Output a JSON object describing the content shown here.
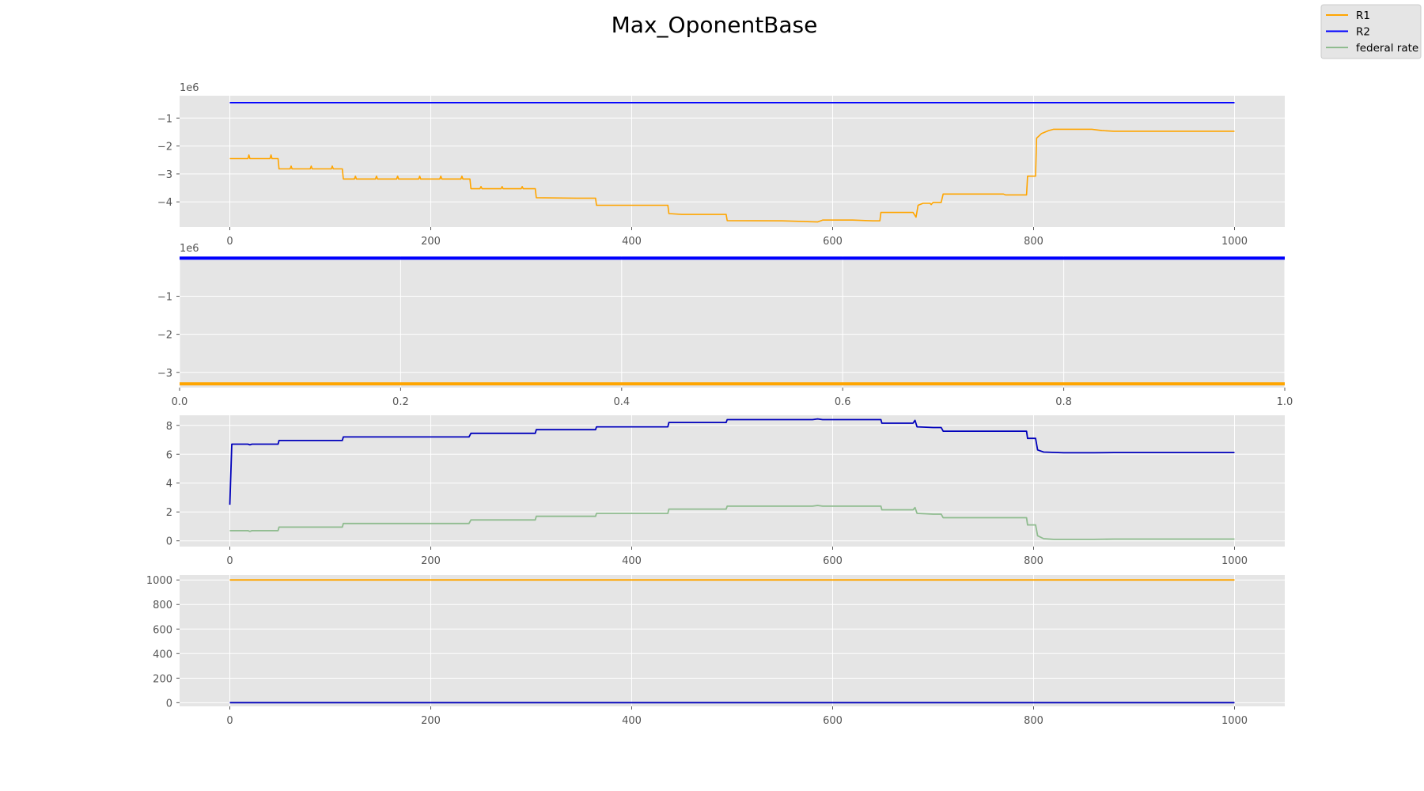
{
  "figure": {
    "title": "Max_OponentBase",
    "legend": {
      "placement": "top-right",
      "entries": [
        {
          "label": "R1",
          "color": "#ffa500"
        },
        {
          "label": "R2",
          "color": "#0000ff"
        },
        {
          "label": "federal rate",
          "color": "#8fbc8f"
        }
      ]
    }
  },
  "chart_data": [
    {
      "type": "line",
      "panel": 1,
      "grid": true,
      "xlim": [
        -50,
        1050
      ],
      "ylim": [
        -4.9,
        -0.2
      ],
      "y_offset_text": "1e6",
      "xticks": [
        0,
        200,
        400,
        600,
        800,
        1000
      ],
      "yticks": [
        -4,
        -3,
        -2,
        -1
      ],
      "ytick_labels": [
        "−4",
        "−3",
        "−2",
        "−1"
      ],
      "series": [
        {
          "name": "R1",
          "color": "#ffa500",
          "width": 1.6,
          "points": [
            [
              0,
              -2.45
            ],
            [
              18,
              -2.45
            ],
            [
              19,
              -2.32
            ],
            [
              20,
              -2.45
            ],
            [
              40,
              -2.45
            ],
            [
              41,
              -2.32
            ],
            [
              42,
              -2.45
            ],
            [
              48,
              -2.45
            ],
            [
              49,
              -2.82
            ],
            [
              60,
              -2.82
            ],
            [
              61,
              -2.72
            ],
            [
              62,
              -2.82
            ],
            [
              80,
              -2.82
            ],
            [
              81,
              -2.72
            ],
            [
              82,
              -2.82
            ],
            [
              101,
              -2.82
            ],
            [
              102,
              -2.72
            ],
            [
              103,
              -2.82
            ],
            [
              112,
              -2.82
            ],
            [
              113,
              -3.18
            ],
            [
              124,
              -3.18
            ],
            [
              125,
              -3.08
            ],
            [
              126,
              -3.18
            ],
            [
              145,
              -3.18
            ],
            [
              146,
              -3.08
            ],
            [
              147,
              -3.18
            ],
            [
              166,
              -3.18
            ],
            [
              167,
              -3.08
            ],
            [
              168,
              -3.18
            ],
            [
              188,
              -3.18
            ],
            [
              189,
              -3.08
            ],
            [
              190,
              -3.18
            ],
            [
              209,
              -3.18
            ],
            [
              210,
              -3.08
            ],
            [
              211,
              -3.18
            ],
            [
              230,
              -3.18
            ],
            [
              231,
              -3.08
            ],
            [
              232,
              -3.18
            ],
            [
              239,
              -3.18
            ],
            [
              240,
              -3.53
            ],
            [
              249,
              -3.53
            ],
            [
              250,
              -3.45
            ],
            [
              251,
              -3.53
            ],
            [
              270,
              -3.53
            ],
            [
              271,
              -3.45
            ],
            [
              272,
              -3.53
            ],
            [
              290,
              -3.53
            ],
            [
              291,
              -3.45
            ],
            [
              292,
              -3.53
            ],
            [
              304,
              -3.53
            ],
            [
              305,
              -3.85
            ],
            [
              345,
              -3.87
            ],
            [
              364,
              -3.87
            ],
            [
              365,
              -4.12
            ],
            [
              400,
              -4.12
            ],
            [
              436,
              -4.12
            ],
            [
              437,
              -4.42
            ],
            [
              450,
              -4.45
            ],
            [
              494,
              -4.45
            ],
            [
              495,
              -4.67
            ],
            [
              550,
              -4.68
            ],
            [
              585,
              -4.72
            ],
            [
              590,
              -4.65
            ],
            [
              620,
              -4.65
            ],
            [
              640,
              -4.68
            ],
            [
              647,
              -4.68
            ],
            [
              648,
              -4.38
            ],
            [
              670,
              -4.38
            ],
            [
              680,
              -4.38
            ],
            [
              683,
              -4.55
            ],
            [
              685,
              -4.12
            ],
            [
              690,
              -4.05
            ],
            [
              697,
              -4.05
            ],
            [
              698,
              -4.1
            ],
            [
              700,
              -4.02
            ],
            [
              708,
              -4.02
            ],
            [
              710,
              -3.72
            ],
            [
              760,
              -3.72
            ],
            [
              770,
              -3.72
            ],
            [
              772,
              -3.75
            ],
            [
              793,
              -3.75
            ],
            [
              794,
              -3.08
            ],
            [
              802,
              -3.08
            ],
            [
              803,
              -1.72
            ],
            [
              808,
              -1.55
            ],
            [
              815,
              -1.45
            ],
            [
              820,
              -1.4
            ],
            [
              840,
              -1.4
            ],
            [
              858,
              -1.4
            ],
            [
              868,
              -1.45
            ],
            [
              880,
              -1.47
            ],
            [
              900,
              -1.47
            ],
            [
              1000,
              -1.47
            ]
          ]
        },
        {
          "name": "R2",
          "color": "#0000ff",
          "width": 1.6,
          "points": [
            [
              0,
              -0.45
            ],
            [
              1000,
              -0.45
            ]
          ]
        }
      ]
    },
    {
      "type": "line",
      "panel": 2,
      "grid": true,
      "xlim": [
        0,
        1
      ],
      "ylim": [
        -3.4,
        0.05
      ],
      "y_offset_text": "1e6",
      "xticks": [
        0,
        0.2,
        0.4,
        0.6,
        0.8,
        1.0
      ],
      "xtick_labels": [
        "0.0",
        "0.2",
        "0.4",
        "0.6",
        "0.8",
        "1.0"
      ],
      "yticks": [
        -3,
        -2,
        -1
      ],
      "ytick_labels": [
        "−3",
        "−2",
        "−1"
      ],
      "series": [
        {
          "name": "R2",
          "color": "#0000ff",
          "width": 4,
          "points": [
            [
              0,
              0
            ],
            [
              1,
              0
            ]
          ]
        },
        {
          "name": "R1",
          "color": "#ffa500",
          "width": 4,
          "points": [
            [
              0,
              -3.3
            ],
            [
              1,
              -3.3
            ]
          ]
        }
      ]
    },
    {
      "type": "line",
      "panel": 3,
      "grid": true,
      "xlim": [
        -50,
        1050
      ],
      "ylim": [
        -0.4,
        8.7
      ],
      "xticks": [
        0,
        200,
        400,
        600,
        800,
        1000
      ],
      "yticks": [
        0,
        2,
        4,
        6,
        8
      ],
      "series": [
        {
          "name": "R2",
          "color": "#0000bb",
          "width": 1.8,
          "points": [
            [
              0,
              2.5
            ],
            [
              2,
              6.7
            ],
            [
              18,
              6.7
            ],
            [
              20,
              6.65
            ],
            [
              22,
              6.7
            ],
            [
              48,
              6.7
            ],
            [
              49,
              6.95
            ],
            [
              112,
              6.95
            ],
            [
              113,
              7.2
            ],
            [
              238,
              7.2
            ],
            [
              240,
              7.45
            ],
            [
              304,
              7.45
            ],
            [
              305,
              7.7
            ],
            [
              364,
              7.7
            ],
            [
              365,
              7.9
            ],
            [
              436,
              7.9
            ],
            [
              437,
              8.2
            ],
            [
              494,
              8.2
            ],
            [
              495,
              8.4
            ],
            [
              580,
              8.4
            ],
            [
              585,
              8.45
            ],
            [
              590,
              8.4
            ],
            [
              620,
              8.4
            ],
            [
              648,
              8.4
            ],
            [
              649,
              8.15
            ],
            [
              675,
              8.15
            ],
            [
              680,
              8.15
            ],
            [
              682,
              8.35
            ],
            [
              684,
              7.9
            ],
            [
              700,
              7.85
            ],
            [
              708,
              7.85
            ],
            [
              710,
              7.6
            ],
            [
              793,
              7.6
            ],
            [
              794,
              7.1
            ],
            [
              802,
              7.1
            ],
            [
              804,
              6.3
            ],
            [
              810,
              6.15
            ],
            [
              830,
              6.1
            ],
            [
              860,
              6.1
            ],
            [
              880,
              6.12
            ],
            [
              1000,
              6.12
            ]
          ]
        },
        {
          "name": "federal rate",
          "color": "#8fbc8f",
          "width": 1.8,
          "points": [
            [
              0,
              0.7
            ],
            [
              18,
              0.7
            ],
            [
              20,
              0.65
            ],
            [
              22,
              0.7
            ],
            [
              48,
              0.7
            ],
            [
              49,
              0.95
            ],
            [
              112,
              0.95
            ],
            [
              113,
              1.2
            ],
            [
              238,
              1.2
            ],
            [
              240,
              1.45
            ],
            [
              304,
              1.45
            ],
            [
              305,
              1.7
            ],
            [
              364,
              1.7
            ],
            [
              365,
              1.9
            ],
            [
              436,
              1.9
            ],
            [
              437,
              2.2
            ],
            [
              494,
              2.2
            ],
            [
              495,
              2.4
            ],
            [
              580,
              2.4
            ],
            [
              585,
              2.45
            ],
            [
              590,
              2.4
            ],
            [
              620,
              2.4
            ],
            [
              648,
              2.4
            ],
            [
              649,
              2.15
            ],
            [
              680,
              2.15
            ],
            [
              682,
              2.3
            ],
            [
              684,
              1.9
            ],
            [
              700,
              1.85
            ],
            [
              708,
              1.85
            ],
            [
              710,
              1.6
            ],
            [
              793,
              1.6
            ],
            [
              794,
              1.1
            ],
            [
              802,
              1.1
            ],
            [
              804,
              0.35
            ],
            [
              810,
              0.15
            ],
            [
              820,
              0.1
            ],
            [
              860,
              0.1
            ],
            [
              880,
              0.12
            ],
            [
              1000,
              0.12
            ]
          ]
        }
      ]
    },
    {
      "type": "line",
      "panel": 4,
      "grid": true,
      "xlim": [
        -50,
        1050
      ],
      "ylim": [
        -30,
        1040
      ],
      "xticks": [
        0,
        200,
        400,
        600,
        800,
        1000
      ],
      "yticks": [
        0,
        200,
        400,
        600,
        800,
        1000
      ],
      "series": [
        {
          "name": "R1",
          "color": "#ffa500",
          "width": 1.8,
          "points": [
            [
              0,
              1000
            ],
            [
              1000,
              1000
            ]
          ]
        },
        {
          "name": "R2",
          "color": "#0000bb",
          "width": 1.8,
          "points": [
            [
              0,
              0
            ],
            [
              1000,
              0
            ]
          ]
        }
      ]
    }
  ]
}
